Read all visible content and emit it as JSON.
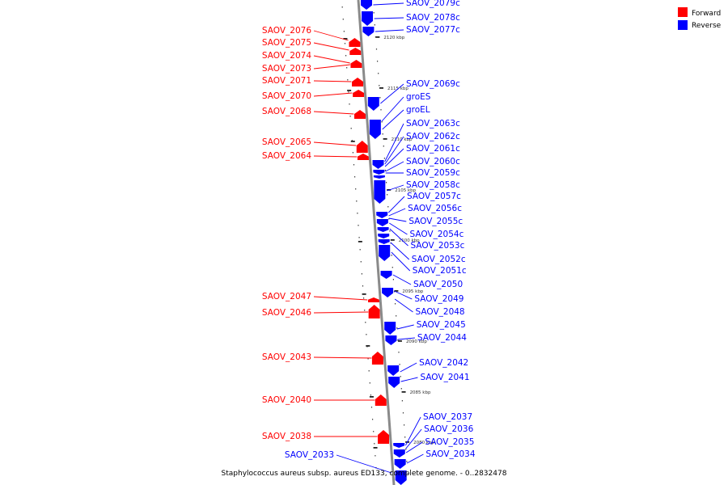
{
  "caption": "Staphylococcus aureus subsp. aureus ED133, complete genome. - 0..2832478",
  "legend": [
    {
      "label": "Forward",
      "color": "#ff0000"
    },
    {
      "label": "Reverse",
      "color": "#0000ff"
    }
  ],
  "colors": {
    "forward": "#ff0000",
    "reverse": "#0000ff",
    "axis": "#888888"
  },
  "ticks": [
    "2120 kbp",
    "2115 kbp",
    "2110 kbp",
    "2105 kbp",
    "2100 kbp",
    "2095 kbp",
    "2090 kbp",
    "2085 kbp",
    "2080 kbp"
  ],
  "forward_genes": [
    "SAOV_2076",
    "SAOV_2075",
    "SAOV_2074",
    "SAOV_2073",
    "SAOV_2071",
    "SAOV_2070",
    "SAOV_2068",
    "SAOV_2065",
    "SAOV_2064",
    "SAOV_2047",
    "SAOV_2046",
    "SAOV_2043",
    "SAOV_2040",
    "SAOV_2038"
  ],
  "reverse_genes": [
    "SAOV_2079c",
    "SAOV_2078c",
    "SAOV_2077c",
    "SAOV_2069c",
    "groES",
    "groEL",
    "SAOV_2063c",
    "SAOV_2062c",
    "SAOV_2061c",
    "SAOV_2060c",
    "SAOV_2059c",
    "SAOV_2058c",
    "SAOV_2057c",
    "SAOV_2056c",
    "SAOV_2055c",
    "SAOV_2054c",
    "SAOV_2053c",
    "SAOV_2052c",
    "SAOV_2051c",
    "SAOV_2050",
    "SAOV_2049",
    "SAOV_2048",
    "SAOV_2045",
    "SAOV_2044",
    "SAOV_2042",
    "SAOV_2041",
    "SAOV_2037",
    "SAOV_2036",
    "SAOV_2035",
    "SAOV_2034",
    "SAOV_2033"
  ]
}
